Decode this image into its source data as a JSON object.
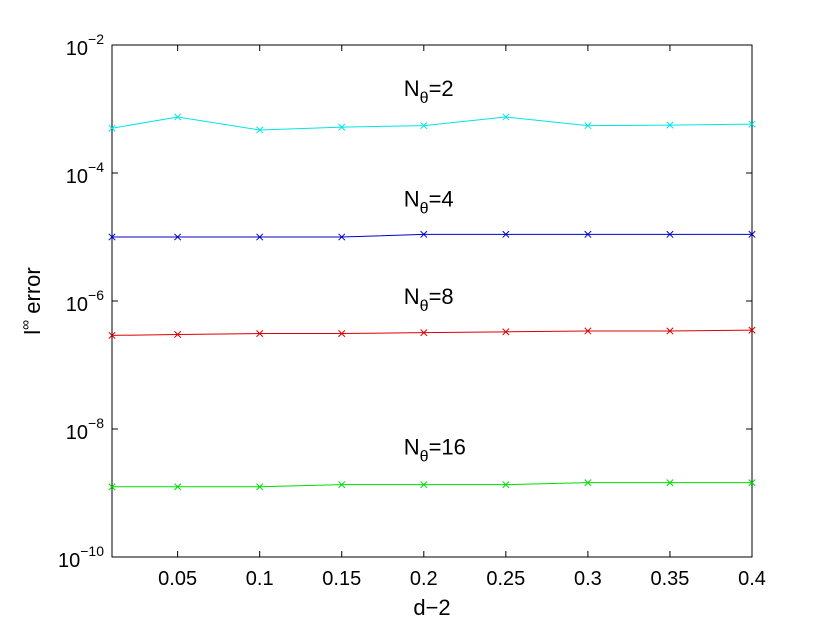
{
  "chart_data": {
    "type": "line",
    "title": "",
    "xlabel": "d−2",
    "ylabel": {
      "base": "l",
      "sup": "∞",
      "rest": " error"
    },
    "xlim": [
      0.01,
      0.4
    ],
    "ylim": [
      1e-10,
      0.01
    ],
    "yscale": "log",
    "grid": false,
    "x": [
      0.01,
      0.05,
      0.1,
      0.15,
      0.2,
      0.25,
      0.3,
      0.35,
      0.4
    ],
    "xticks": [
      "0.05",
      "0.1",
      "0.15",
      "0.2",
      "0.25",
      "0.3",
      "0.35",
      "0.4"
    ],
    "xtick_values": [
      0.05,
      0.1,
      0.15,
      0.2,
      0.25,
      0.3,
      0.35,
      0.4
    ],
    "yticks": [
      {
        "base": "10",
        "exp": "−2",
        "value": 0.01
      },
      {
        "base": "10",
        "exp": "−4",
        "value": 0.0001
      },
      {
        "base": "10",
        "exp": "−6",
        "value": 1e-06
      },
      {
        "base": "10",
        "exp": "−8",
        "value": 1e-08
      },
      {
        "base": "10",
        "exp": "−10",
        "value": 1e-10
      }
    ],
    "series": [
      {
        "label": {
          "base": "N",
          "sub": "θ",
          "rest": "=2"
        },
        "color": "#00e5e5",
        "values": [
          0.0005,
          0.00075,
          0.00047,
          0.00052,
          0.00055,
          0.00075,
          0.00055,
          0.00056,
          0.00058
        ],
        "label_at": {
          "x": 0.2,
          "y": 0.0016
        }
      },
      {
        "label": {
          "base": "N",
          "sub": "θ",
          "rest": "=4"
        },
        "color": "#0000cc",
        "values": [
          1e-05,
          1e-05,
          1e-05,
          1e-05,
          1.1e-05,
          1.1e-05,
          1.1e-05,
          1.1e-05,
          1.1e-05
        ],
        "label_at": {
          "x": 0.2,
          "y": 3e-05
        }
      },
      {
        "label": {
          "base": "N",
          "sub": "θ",
          "rest": "=8"
        },
        "color": "#dd0000",
        "values": [
          2.9e-07,
          3e-07,
          3.1e-07,
          3.1e-07,
          3.2e-07,
          3.3e-07,
          3.4e-07,
          3.4e-07,
          3.5e-07
        ],
        "label_at": {
          "x": 0.2,
          "y": 9e-07
        }
      },
      {
        "label": {
          "base": "N",
          "sub": "θ",
          "rest": "=16"
        },
        "color": "#00dd00",
        "values": [
          1.25e-09,
          1.25e-09,
          1.25e-09,
          1.35e-09,
          1.35e-09,
          1.35e-09,
          1.45e-09,
          1.45e-09,
          1.45e-09
        ],
        "label_at": {
          "x": 0.2,
          "y": 4e-09
        }
      }
    ]
  }
}
